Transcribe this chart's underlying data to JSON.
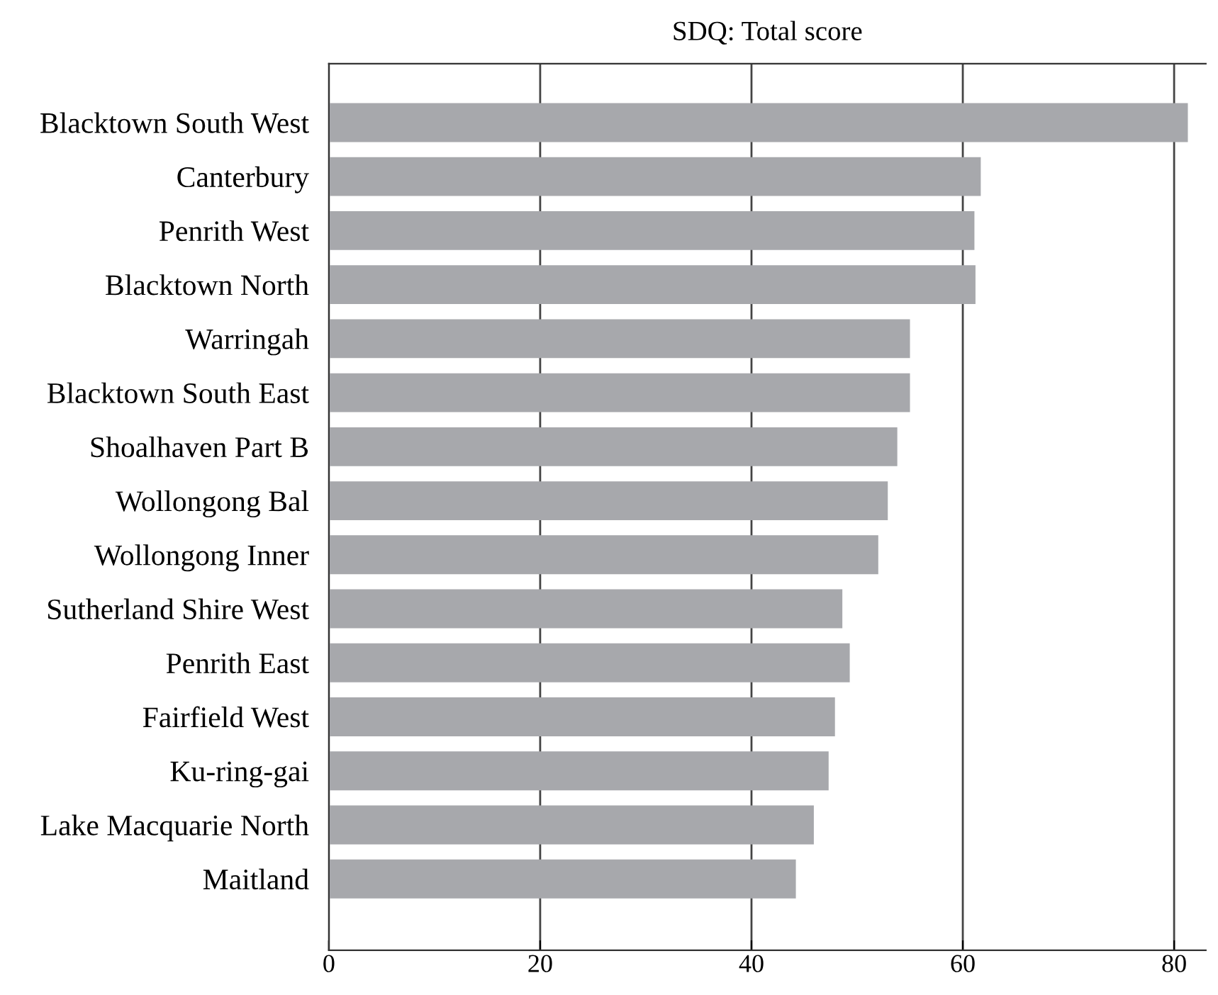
{
  "chart_data": {
    "type": "bar",
    "orientation": "horizontal",
    "title": "SDQ: Total score",
    "categories": [
      "Blacktown South West",
      "Canterbury",
      "Penrith West",
      "Blacktown North",
      "Warringah",
      "Blacktown South East",
      "Shoalhaven Part B",
      "Wollongong Bal",
      "Wollongong Inner",
      "Sutherland Shire West",
      "Penrith East",
      "Fairfield West",
      "Ku-ring-gai",
      "Lake Macquarie North",
      "Maitland"
    ],
    "values": [
      81.3,
      61.7,
      61.1,
      61.2,
      55.0,
      55.0,
      53.8,
      52.9,
      52.0,
      48.6,
      49.3,
      47.9,
      47.3,
      45.9,
      44.2
    ],
    "color": "#a7a8ac",
    "xlim": [
      0,
      83
    ],
    "xticks": [
      0,
      20,
      40,
      60,
      80
    ],
    "grid": "x",
    "legend": false
  }
}
